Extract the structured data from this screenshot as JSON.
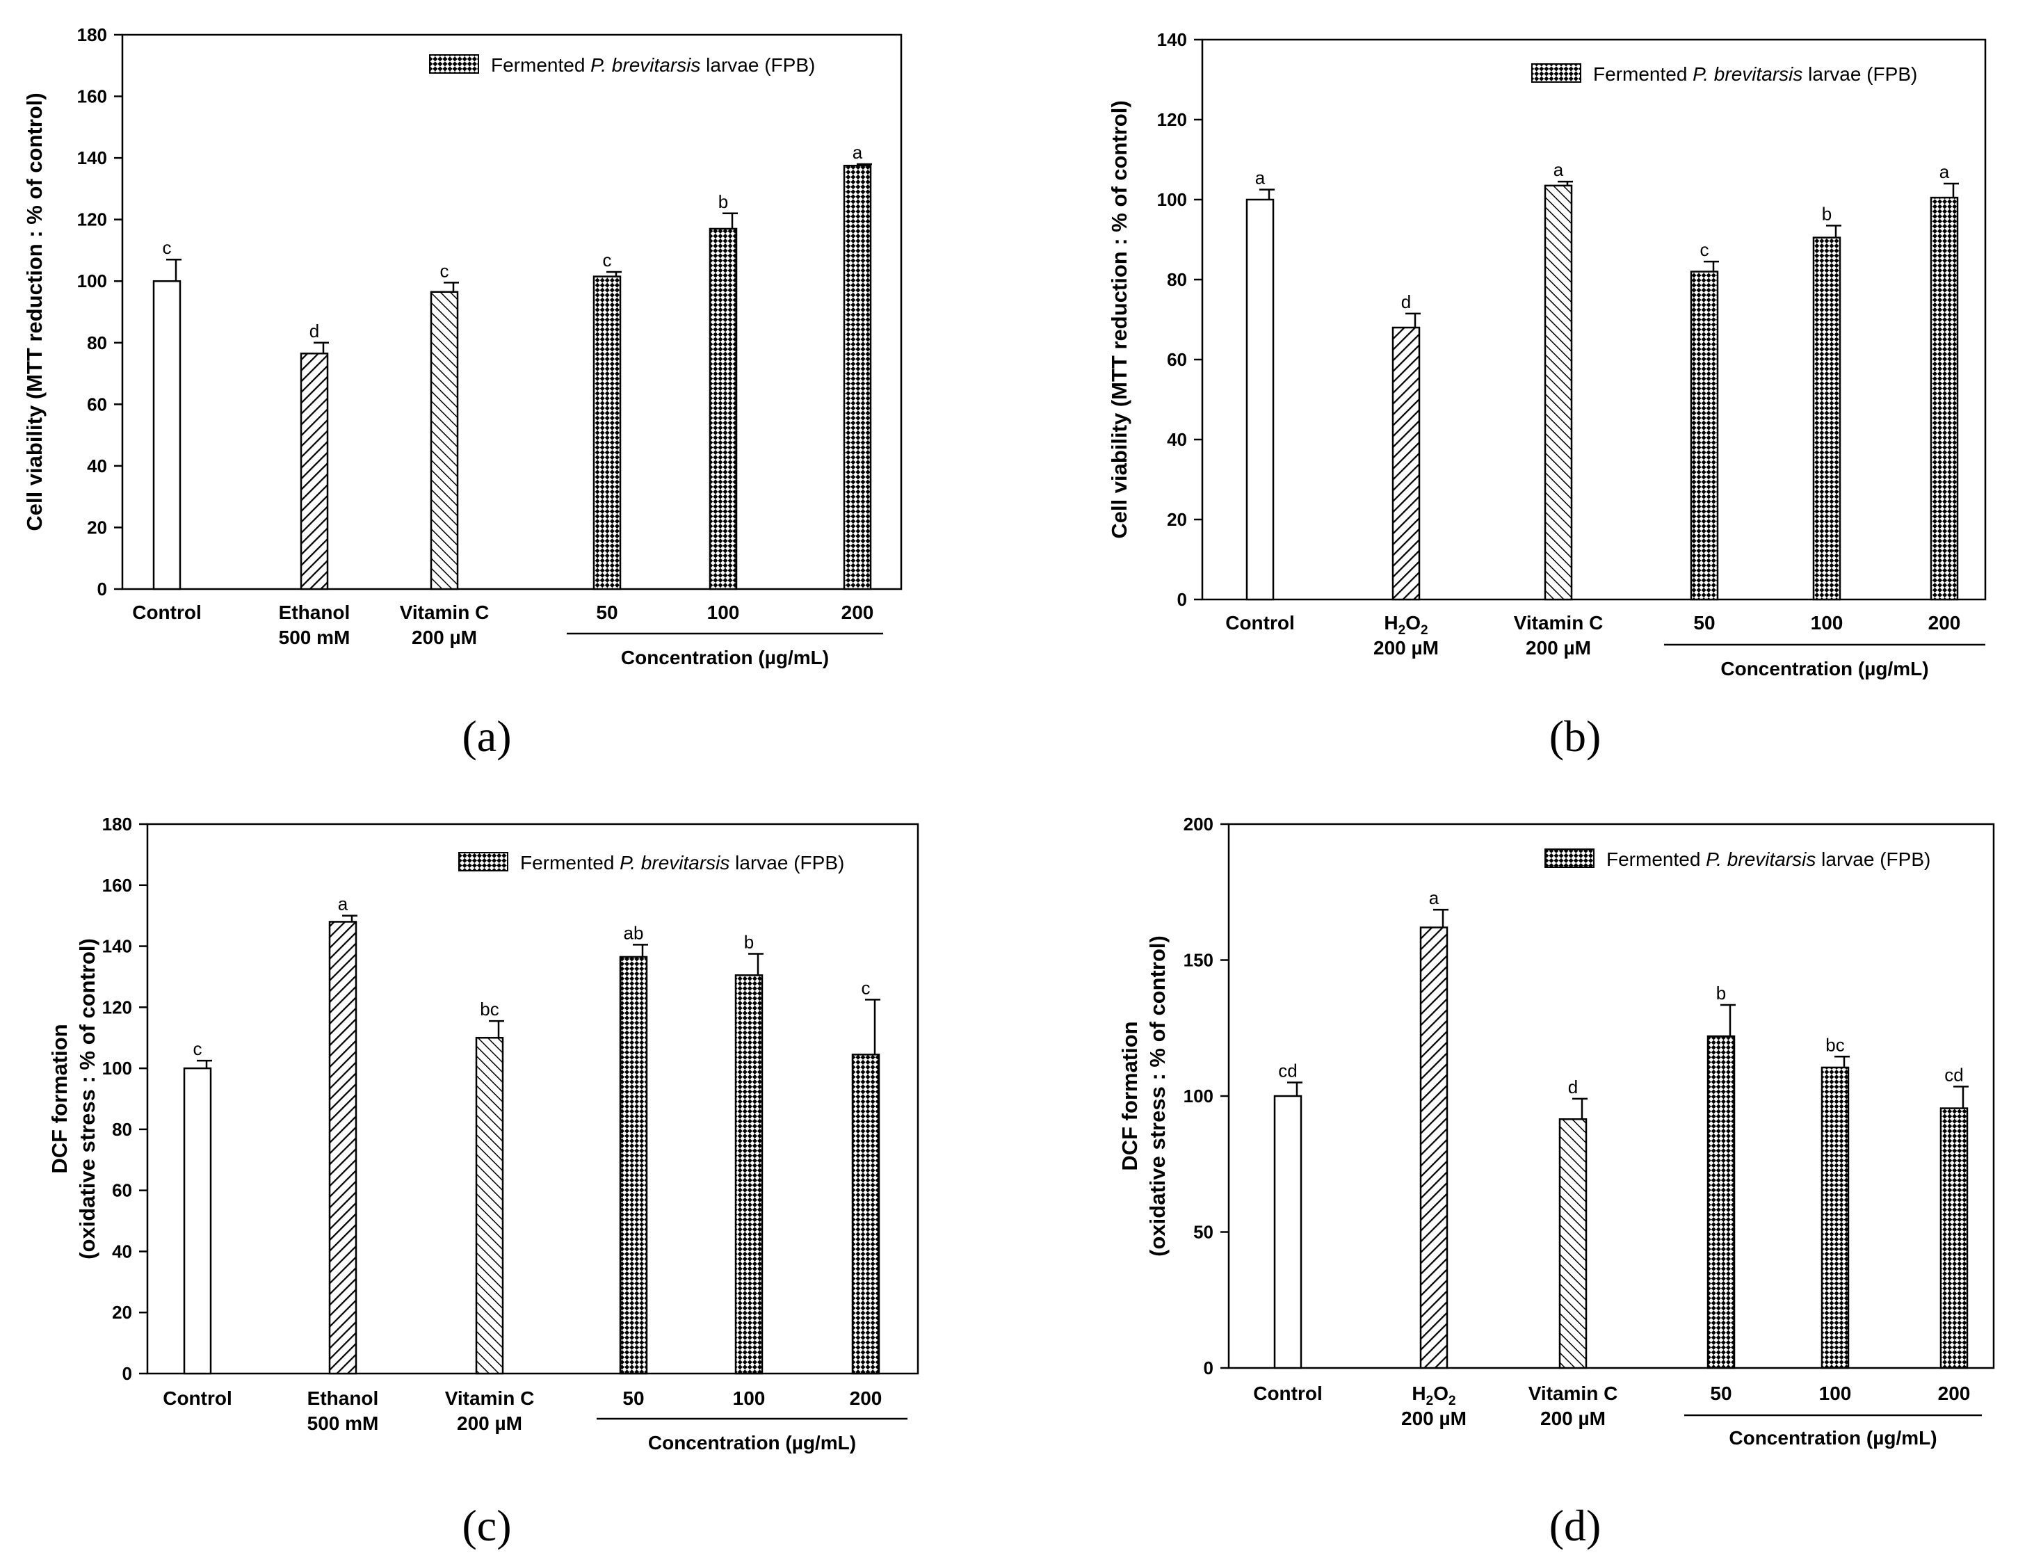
{
  "figure_labels": [
    "(a)",
    "(b)",
    "(c)",
    "(d)"
  ],
  "chart_data": [
    {
      "id": "a",
      "panel_label": "(a)",
      "type": "bar",
      "ylabel": "Cell viability (MTT reduction : % of control)",
      "ylim": [
        0,
        180
      ],
      "yticks": [
        0,
        20,
        40,
        60,
        80,
        100,
        120,
        140,
        160,
        180
      ],
      "group_label": "Concentration (µg/mL)",
      "legend": {
        "text_pre": "Fermented ",
        "text_italic": "P. brevitarsis",
        "text_post": " larvae (FPB)",
        "placement": "top-right"
      },
      "bars": [
        {
          "label_lines": [
            "Control"
          ],
          "value": 100,
          "err": 7,
          "sig": "c",
          "pattern": "none"
        },
        {
          "label_lines": [
            "Ethanol",
            "500 mM"
          ],
          "value": 76.5,
          "err": 3.5,
          "sig": "d",
          "pattern": "diag"
        },
        {
          "label_lines": [
            "Vitamin C",
            "200 µM"
          ],
          "value": 96.5,
          "err": 3,
          "sig": "c",
          "pattern": "antidiag"
        },
        {
          "label_lines": [
            "50"
          ],
          "value": 101.5,
          "err": 1.5,
          "sig": "c",
          "pattern": "check"
        },
        {
          "label_lines": [
            "100"
          ],
          "value": 117,
          "err": 5,
          "sig": "b",
          "pattern": "check"
        },
        {
          "label_lines": [
            "200"
          ],
          "value": 137.5,
          "err": 0.5,
          "sig": "a",
          "pattern": "check"
        }
      ]
    },
    {
      "id": "b",
      "panel_label": "(b)",
      "type": "bar",
      "ylabel": "Cell viability (MTT reduction : % of control)",
      "ylim": [
        0,
        140
      ],
      "yticks": [
        0,
        20,
        40,
        60,
        80,
        100,
        120,
        140
      ],
      "group_label": "Concentration (µg/mL)",
      "legend": {
        "text_pre": "Fermented ",
        "text_italic": "P. brevitarsis",
        "text_post": " larvae (FPB)",
        "placement": "top-right"
      },
      "bars": [
        {
          "label_lines": [
            "Control"
          ],
          "value": 100,
          "err": 2.5,
          "sig": "a",
          "pattern": "none"
        },
        {
          "label_lines": [
            "H2O2",
            "200 µM"
          ],
          "value": 68,
          "err": 3.5,
          "sig": "d",
          "pattern": "diag"
        },
        {
          "label_lines": [
            "Vitamin C",
            "200 µM"
          ],
          "value": 103.5,
          "err": 1,
          "sig": "a",
          "pattern": "antidiag"
        },
        {
          "label_lines": [
            "50"
          ],
          "value": 82,
          "err": 2.5,
          "sig": "c",
          "pattern": "check"
        },
        {
          "label_lines": [
            "100"
          ],
          "value": 90.5,
          "err": 3,
          "sig": "b",
          "pattern": "check"
        },
        {
          "label_lines": [
            "200"
          ],
          "value": 100.5,
          "err": 3.5,
          "sig": "a",
          "pattern": "check"
        }
      ]
    },
    {
      "id": "c",
      "panel_label": "(c)",
      "type": "bar",
      "ylabel": "DCF formation",
      "ylabel2": "(oxidative stress : % of control)",
      "ylim": [
        0,
        180
      ],
      "yticks": [
        0,
        20,
        40,
        60,
        80,
        100,
        120,
        140,
        160,
        180
      ],
      "group_label": "Concentration (µg/mL)",
      "legend": {
        "text_pre": "Fermented ",
        "text_italic": "P. brevitarsis",
        "text_post": " larvae (FPB)",
        "placement": "top-right"
      },
      "bars": [
        {
          "label_lines": [
            "Control"
          ],
          "value": 100,
          "err": 2.5,
          "sig": "c",
          "pattern": "none"
        },
        {
          "label_lines": [
            "Ethanol",
            "500 mM"
          ],
          "value": 148,
          "err": 2,
          "sig": "a",
          "pattern": "diag"
        },
        {
          "label_lines": [
            "Vitamin C",
            "200 µM"
          ],
          "value": 110,
          "err": 5.5,
          "sig": "bc",
          "pattern": "antidiag"
        },
        {
          "label_lines": [
            "50"
          ],
          "value": 136.5,
          "err": 4,
          "sig": "ab",
          "pattern": "check"
        },
        {
          "label_lines": [
            "100"
          ],
          "value": 130.5,
          "err": 7,
          "sig": "b",
          "pattern": "check"
        },
        {
          "label_lines": [
            "200"
          ],
          "value": 104.5,
          "err": 18,
          "sig": "c",
          "pattern": "check"
        }
      ]
    },
    {
      "id": "d",
      "panel_label": "(d)",
      "type": "bar",
      "ylabel": "DCF formation",
      "ylabel2": "(oxidative stress : % of control)",
      "ylim": [
        0,
        200
      ],
      "yticks": [
        0,
        50,
        100,
        150,
        200
      ],
      "group_label": "Concentration (µg/mL)",
      "legend": {
        "text_pre": "Fermented ",
        "text_italic": "P. brevitarsis",
        "text_post": " larvae (FPB)",
        "placement": "top-right"
      },
      "bars": [
        {
          "label_lines": [
            "Control"
          ],
          "value": 100,
          "err": 5,
          "sig": "cd",
          "pattern": "none"
        },
        {
          "label_lines": [
            "H2O2",
            "200 µM"
          ],
          "value": 162,
          "err": 6.5,
          "sig": "a",
          "pattern": "diag"
        },
        {
          "label_lines": [
            "Vitamin C",
            "200 µM"
          ],
          "value": 91.5,
          "err": 7.5,
          "sig": "d",
          "pattern": "antidiag"
        },
        {
          "label_lines": [
            "50"
          ],
          "value": 122,
          "err": 11.5,
          "sig": "b",
          "pattern": "check"
        },
        {
          "label_lines": [
            "100"
          ],
          "value": 110.5,
          "err": 4,
          "sig": "bc",
          "pattern": "check"
        },
        {
          "label_lines": [
            "200"
          ],
          "value": 95.5,
          "err": 8,
          "sig": "cd",
          "pattern": "check"
        }
      ]
    }
  ]
}
